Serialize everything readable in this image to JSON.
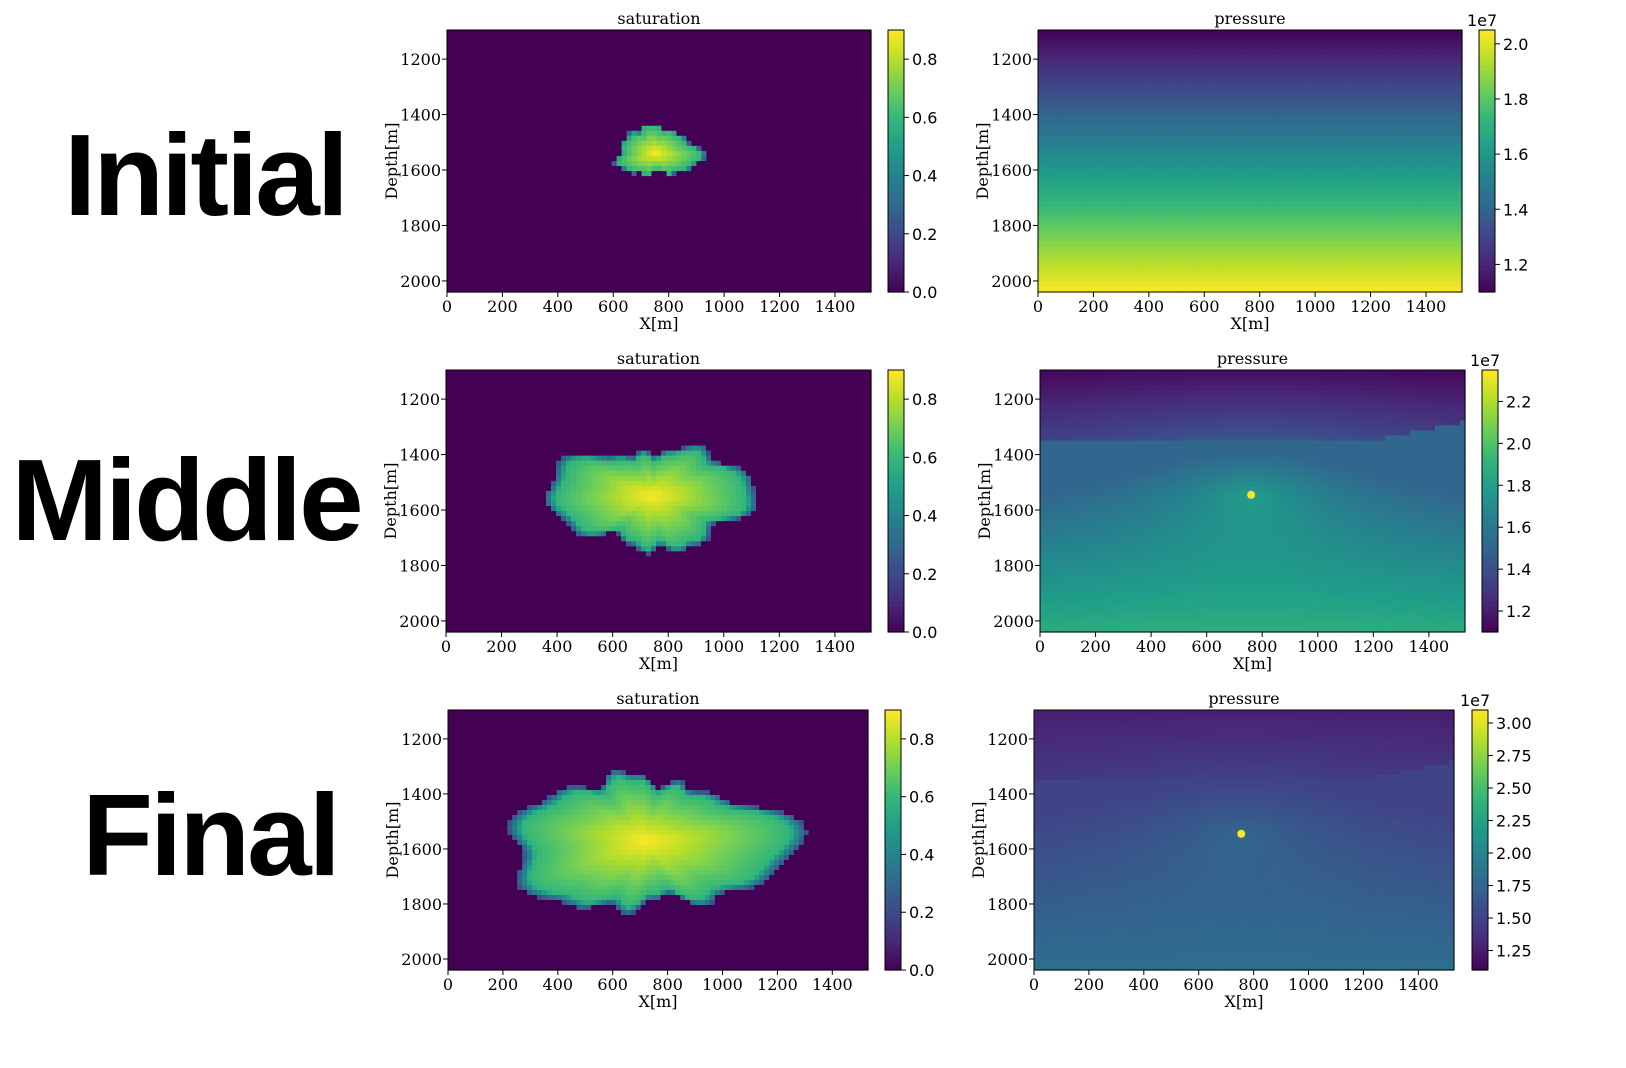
{
  "row_labels": [
    "Initial",
    "Middle",
    "Final"
  ],
  "colormap": [
    "#440154",
    "#482878",
    "#3e4989",
    "#31688e",
    "#26828e",
    "#1f9e89",
    "#35b779",
    "#6ece58",
    "#b5de2b",
    "#fde725"
  ],
  "chart_data": [
    {
      "type": "heatmap",
      "row": "Initial",
      "field": "saturation",
      "title": "saturation",
      "xlabel": "X[m]",
      "ylabel": "Depth[m]",
      "xlim": [
        0,
        1530
      ],
      "ylim": [
        2040,
        1095
      ],
      "xticks": [
        0,
        200,
        400,
        600,
        800,
        1000,
        1200,
        1400
      ],
      "yticks": [
        1200,
        1400,
        1600,
        1800,
        2000
      ],
      "colorbar": {
        "min": 0.0,
        "max": 0.9,
        "ticks": [
          0.0,
          0.2,
          0.4,
          0.6,
          0.8
        ],
        "tick_labels": [
          "0.0",
          "0.2",
          "0.4",
          "0.6",
          "0.8"
        ],
        "multiplier": ""
      },
      "background": 0.0,
      "plume": {
        "center_x": 750,
        "center_depth": 1540,
        "half_width_x": [
          145,
          160
        ],
        "half_height": [
          95,
          80
        ],
        "peak": 0.9
      }
    },
    {
      "type": "heatmap",
      "row": "Initial",
      "field": "pressure",
      "title": "pressure",
      "xlabel": "X[m]",
      "ylabel": "Depth[m]",
      "xlim": [
        0,
        1530
      ],
      "ylim": [
        2040,
        1095
      ],
      "xticks": [
        0,
        200,
        400,
        600,
        800,
        1000,
        1200,
        1400
      ],
      "yticks": [
        1200,
        1400,
        1600,
        1800,
        2000
      ],
      "colorbar": {
        "min": 1.1,
        "max": 2.05,
        "ticks": [
          1.2,
          1.4,
          1.6,
          1.8,
          2.0
        ],
        "tick_labels": [
          "1.2",
          "1.4",
          "1.6",
          "1.8",
          "2.0"
        ],
        "multiplier": "1e7"
      },
      "gradient": {
        "top": 1.1,
        "bottom": 2.05
      }
    },
    {
      "type": "heatmap",
      "row": "Middle",
      "field": "saturation",
      "title": "saturation",
      "xlabel": "X[m]",
      "ylabel": "Depth[m]",
      "xlim": [
        0,
        1530
      ],
      "ylim": [
        2040,
        1095
      ],
      "xticks": [
        0,
        200,
        400,
        600,
        800,
        1000,
        1200,
        1400
      ],
      "yticks": [
        1200,
        1400,
        1600,
        1800,
        2000
      ],
      "colorbar": {
        "min": 0.0,
        "max": 0.9,
        "ticks": [
          0.0,
          0.2,
          0.4,
          0.6,
          0.8
        ],
        "tick_labels": [
          "0.0",
          "0.2",
          "0.4",
          "0.6",
          "0.8"
        ],
        "multiplier": ""
      },
      "background": 0.0,
      "plume": {
        "center_x": 740,
        "center_depth": 1550,
        "half_width_x": [
          370,
          390
        ],
        "half_height": [
          165,
          185
        ],
        "peak": 0.9
      }
    },
    {
      "type": "heatmap",
      "row": "Middle",
      "field": "pressure",
      "title": "pressure",
      "xlabel": "X[m]",
      "ylabel": "Depth[m]",
      "xlim": [
        0,
        1530
      ],
      "ylim": [
        2040,
        1095
      ],
      "xticks": [
        0,
        200,
        400,
        600,
        800,
        1000,
        1200,
        1400
      ],
      "yticks": [
        1200,
        1400,
        1600,
        1800,
        2000
      ],
      "colorbar": {
        "min": 1.1,
        "max": 2.35,
        "ticks": [
          1.2,
          1.4,
          1.6,
          1.8,
          2.0,
          2.2
        ],
        "tick_labels": [
          "1.2",
          "1.4",
          "1.6",
          "1.8",
          "2.0",
          "2.2"
        ],
        "multiplier": "1e7"
      },
      "gradient": {
        "top": 1.1,
        "bottom": 1.85
      },
      "injection_point": {
        "x": 760,
        "depth": 1545,
        "value": 2.35
      }
    },
    {
      "type": "heatmap",
      "row": "Final",
      "field": "saturation",
      "title": "saturation",
      "xlabel": "X[m]",
      "ylabel": "Depth[m]",
      "xlim": [
        0,
        1530
      ],
      "ylim": [
        2040,
        1095
      ],
      "xticks": [
        0,
        200,
        400,
        600,
        800,
        1000,
        1200,
        1400
      ],
      "yticks": [
        1200,
        1400,
        1600,
        1800,
        2000
      ],
      "colorbar": {
        "min": 0.0,
        "max": 0.9,
        "ticks": [
          0.0,
          0.2,
          0.4,
          0.6,
          0.8
        ],
        "tick_labels": [
          "0.0",
          "0.2",
          "0.4",
          "0.6",
          "0.8"
        ],
        "multiplier": ""
      },
      "background": 0.0,
      "plume": {
        "center_x": 720,
        "center_depth": 1570,
        "half_width_x": [
          560,
          500
        ],
        "half_height": [
          220,
          240
        ],
        "peak": 0.9
      }
    },
    {
      "type": "heatmap",
      "row": "Final",
      "field": "pressure",
      "title": "pressure",
      "xlabel": "X[m]",
      "ylabel": "Depth[m]",
      "xlim": [
        0,
        1530
      ],
      "ylim": [
        2040,
        1095
      ],
      "xticks": [
        0,
        200,
        400,
        600,
        800,
        1000,
        1200,
        1400
      ],
      "yticks": [
        1200,
        1400,
        1600,
        1800,
        2000
      ],
      "colorbar": {
        "min": 1.1,
        "max": 3.1,
        "ticks": [
          1.25,
          1.5,
          1.75,
          2.0,
          2.25,
          2.5,
          2.75,
          3.0
        ],
        "tick_labels": [
          "1.25",
          "1.50",
          "1.75",
          "2.00",
          "2.25",
          "2.50",
          "2.75",
          "3.00"
        ],
        "multiplier": "1e7"
      },
      "gradient": {
        "top": 1.2,
        "bottom": 1.75
      },
      "injection_point": {
        "x": 755,
        "depth": 1545,
        "value": 3.1
      }
    }
  ]
}
